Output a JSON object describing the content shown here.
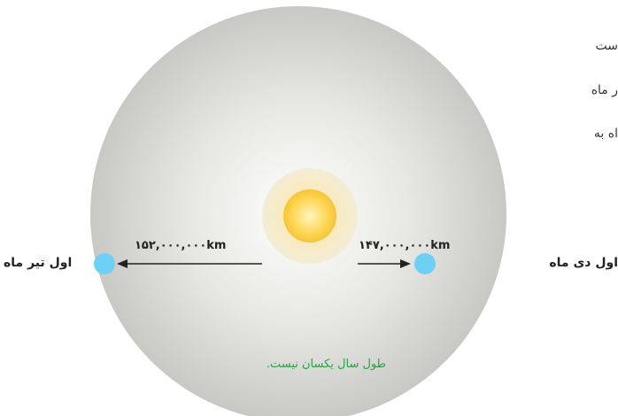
{
  "page_text": {
    "line1": "ست",
    "line2": "ر ماه",
    "line3": "اه به"
  },
  "caption": "طول سال یکسان نیست.",
  "diagram": {
    "left_label": "اول تیر ماه",
    "right_label": "اول دی ماه",
    "left_distance": "۱۵۲,۰۰۰,۰۰۰km",
    "right_distance": "۱۴۷,۰۰۰,۰۰۰km",
    "colors": {
      "planet": "#6fd0f5",
      "sun_core": "#ffd24a",
      "sun_glow": "#f7e3a0",
      "orbit_center": "#ffffff",
      "orbit_edge": "#c8c8c4",
      "arrow": "#222222",
      "caption": "#2e9e48"
    }
  }
}
